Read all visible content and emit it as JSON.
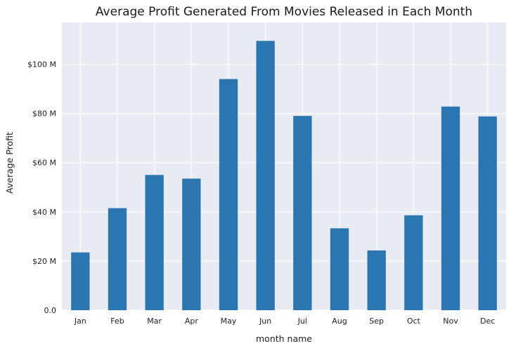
{
  "chart_data": {
    "type": "bar",
    "title": "Average Profit Generated From Movies Released in Each Month",
    "xlabel": "month name",
    "ylabel": "Average Profit",
    "categories": [
      "Jan",
      "Feb",
      "Mar",
      "Apr",
      "May",
      "Jun",
      "Jul",
      "Aug",
      "Sep",
      "Oct",
      "Nov",
      "Dec"
    ],
    "values": [
      23.5,
      41.5,
      55,
      53.5,
      94,
      109.5,
      79,
      33.3,
      24.3,
      38.6,
      82.8,
      78.8
    ],
    "value_unit": "million USD",
    "ylim": [
      0,
      117
    ],
    "yticks": [
      0,
      20,
      40,
      60,
      80,
      100
    ],
    "ytick_labels": [
      "0.0",
      "$20 M",
      "$40 M",
      "$60 M",
      "$80 M",
      "$100 M"
    ],
    "grid": true,
    "bar_color": "#2b76b0",
    "background_color": "#e9ebf2",
    "grid_color": "#ffffff"
  }
}
